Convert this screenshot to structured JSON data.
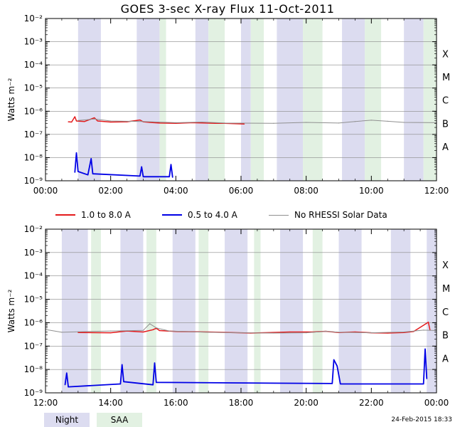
{
  "title": "GOES 3-sec X-ray Flux    11-Oct-2011",
  "footer_date": "24-Feb-2015 18:33",
  "legend": {
    "series_long": "1.0 to 8.0 A",
    "series_short": "0.5 to 4.0 A",
    "no_data": "No RHESSI Solar Data"
  },
  "keys": {
    "night": "Night",
    "saa": "SAA"
  },
  "colors": {
    "long": "#e41a1c",
    "short": "#0000e6",
    "nodata": "#909090",
    "night": "#dcdcf0",
    "saa": "#e2f1e2",
    "grid": "#888888"
  },
  "chart_data": [
    {
      "type": "line",
      "panel": "top",
      "xlim": [
        "00:00",
        "12:00"
      ],
      "x_ticks": [
        "00:00",
        "02:00",
        "04:00",
        "06:00",
        "08:00",
        "10:00",
        "12:00"
      ],
      "y_scale": "log",
      "ylim": [
        1e-09,
        0.01
      ],
      "y_ticks": [
        "10⁻⁹",
        "10⁻⁸",
        "10⁻⁷",
        "10⁻⁶",
        "10⁻⁵",
        "10⁻⁴",
        "10⁻³",
        "10⁻²"
      ],
      "ylabel": "Watts m⁻²",
      "class_labels": [
        "A",
        "B",
        "C",
        "M",
        "X"
      ],
      "night_hours": [
        [
          1.0,
          1.7
        ],
        [
          2.8,
          3.5
        ],
        [
          4.6,
          5.0
        ],
        [
          6.0,
          6.3
        ],
        [
          7.1,
          7.9
        ],
        [
          9.1,
          9.8
        ],
        [
          11.0,
          11.6
        ]
      ],
      "saa_hours": [
        [
          3.5,
          3.7
        ],
        [
          5.0,
          5.5
        ],
        [
          6.3,
          6.7
        ],
        [
          7.9,
          8.5
        ],
        [
          9.8,
          10.3
        ],
        [
          11.6,
          12.0
        ]
      ],
      "series": [
        {
          "name": "1.0 to 8.0 A",
          "points": [
            [
              0.7,
              3.5e-07
            ],
            [
              0.8,
              3.4e-07
            ],
            [
              0.9,
              5.8e-07
            ],
            [
              0.95,
              3.8e-07
            ],
            [
              1.2,
              3.6e-07
            ],
            [
              1.5,
              5.2e-07
            ],
            [
              1.6,
              3.8e-07
            ],
            [
              2.0,
              3.4e-07
            ],
            [
              2.5,
              3.5e-07
            ],
            [
              2.9,
              4.2e-07
            ],
            [
              3.0,
              3.5e-07
            ],
            [
              3.2,
              3.3e-07
            ],
            [
              3.5,
              3.1e-07
            ],
            [
              4.0,
              3e-07
            ],
            [
              4.5,
              3.2e-07
            ],
            [
              4.9,
              3.1e-07
            ],
            [
              5.2,
              3e-07
            ],
            [
              5.5,
              3e-07
            ],
            [
              6.1,
              2.8e-07
            ]
          ]
        },
        {
          "name": "0.5 to 4.0 A",
          "points": [
            [
              0.9,
              2.3e-09
            ],
            [
              0.95,
              1.6e-08
            ],
            [
              1.0,
              2.5e-09
            ],
            [
              1.3,
              1.8e-09
            ],
            [
              1.4,
              9e-09
            ],
            [
              1.45,
              2e-09
            ],
            [
              2.9,
              1.6e-09
            ],
            [
              2.95,
              4e-09
            ],
            [
              3.0,
              1.5e-09
            ],
            [
              3.8,
              1.5e-09
            ],
            [
              3.85,
              5e-09
            ],
            [
              3.9,
              1.4e-09
            ]
          ]
        },
        {
          "name": "No RHESSI Solar Data",
          "points": [
            [
              1.0,
              4e-07
            ],
            [
              1.5,
              4.6e-07
            ],
            [
              2.0,
              3.8e-07
            ],
            [
              3.0,
              3.6e-07
            ],
            [
              4.0,
              3.2e-07
            ],
            [
              4.8,
              3.4e-07
            ],
            [
              5.5,
              3.1e-07
            ],
            [
              7.0,
              3e-07
            ],
            [
              8.0,
              3.3e-07
            ],
            [
              9.0,
              3.1e-07
            ],
            [
              9.5,
              3.6e-07
            ],
            [
              10.0,
              4.1e-07
            ],
            [
              10.5,
              3.7e-07
            ],
            [
              11.0,
              3.3e-07
            ],
            [
              12.0,
              3.2e-07
            ]
          ]
        }
      ]
    },
    {
      "type": "line",
      "panel": "bottom",
      "xlim": [
        "12:00",
        "00:00"
      ],
      "x_ticks": [
        "12:00",
        "14:00",
        "16:00",
        "18:00",
        "20:00",
        "22:00",
        "00:00"
      ],
      "y_scale": "log",
      "ylim": [
        1e-09,
        0.01
      ],
      "y_ticks": [
        "10⁻⁹",
        "10⁻⁸",
        "10⁻⁷",
        "10⁻⁶",
        "10⁻⁵",
        "10⁻⁴",
        "10⁻³",
        "10⁻²"
      ],
      "ylabel": "Watts m⁻²",
      "class_labels": [
        "A",
        "B",
        "C",
        "M",
        "X"
      ],
      "night_hours": [
        [
          0.5,
          1.3
        ],
        [
          2.3,
          3.0
        ],
        [
          3.9,
          4.6
        ],
        [
          5.5,
          6.2
        ],
        [
          7.2,
          7.9
        ],
        [
          9.0,
          9.7
        ],
        [
          10.6,
          11.2
        ],
        [
          11.7,
          12.0
        ]
      ],
      "saa_hours": [
        [
          1.4,
          1.7
        ],
        [
          3.1,
          3.4
        ],
        [
          4.7,
          5.0
        ],
        [
          6.4,
          6.6
        ],
        [
          8.2,
          8.5
        ]
      ],
      "series": [
        {
          "name": "1.0 to 8.0 A",
          "points": [
            [
              1.0,
              3.8e-07
            ],
            [
              2.0,
              3.7e-07
            ],
            [
              2.5,
              4.4e-07
            ],
            [
              3.0,
              4e-07
            ],
            [
              3.3,
              5e-07
            ],
            [
              3.4,
              5.8e-07
            ],
            [
              3.5,
              4.6e-07
            ],
            [
              4.0,
              4.2e-07
            ],
            [
              5.0,
              4e-07
            ],
            [
              6.0,
              3.7e-07
            ],
            [
              6.3,
              3.6e-07
            ],
            [
              7.5,
              4e-07
            ],
            [
              8.2,
              4e-07
            ],
            [
              8.6,
              4.3e-07
            ],
            [
              9.0,
              3.8e-07
            ],
            [
              9.5,
              4e-07
            ],
            [
              10.0,
              3.7e-07
            ],
            [
              10.5,
              3.6e-07
            ],
            [
              11.0,
              3.8e-07
            ],
            [
              11.3,
              4.2e-07
            ],
            [
              11.75,
              1.05e-06
            ],
            [
              11.8,
              4.9e-07
            ]
          ]
        },
        {
          "name": "0.5 to 4.0 A",
          "points": [
            [
              0.6,
              2.2e-09
            ],
            [
              0.65,
              7e-09
            ],
            [
              0.7,
              1.8e-09
            ],
            [
              2.3,
              2.4e-09
            ],
            [
              2.35,
              1.6e-08
            ],
            [
              2.4,
              3e-09
            ],
            [
              3.3,
              2.2e-09
            ],
            [
              3.35,
              1.9e-08
            ],
            [
              3.4,
              2.8e-09
            ],
            [
              8.8,
              2.5e-09
            ],
            [
              8.85,
              2.6e-08
            ],
            [
              8.95,
              1.4e-08
            ],
            [
              9.05,
              2.4e-09
            ],
            [
              11.6,
              2.4e-09
            ],
            [
              11.65,
              7.5e-08
            ],
            [
              11.7,
              4e-09
            ]
          ]
        },
        {
          "name": "No RHESSI Solar Data",
          "points": [
            [
              0.0,
              5.1e-07
            ],
            [
              0.5,
              3.9e-07
            ],
            [
              1.0,
              4.1e-07
            ],
            [
              2.0,
              4.4e-07
            ],
            [
              3.0,
              4.7e-07
            ],
            [
              3.2,
              9e-07
            ],
            [
              3.4,
              6e-07
            ],
            [
              3.8,
              4.4e-07
            ],
            [
              5.0,
              3.9e-07
            ],
            [
              6.0,
              3.7e-07
            ],
            [
              7.0,
              3.6e-07
            ],
            [
              8.0,
              3.7e-07
            ],
            [
              8.6,
              4.3e-07
            ],
            [
              9.0,
              3.9e-07
            ],
            [
              10.0,
              3.7e-07
            ],
            [
              11.0,
              4e-07
            ],
            [
              11.6,
              4.8e-07
            ],
            [
              12.0,
              4.6e-07
            ]
          ]
        }
      ]
    }
  ]
}
